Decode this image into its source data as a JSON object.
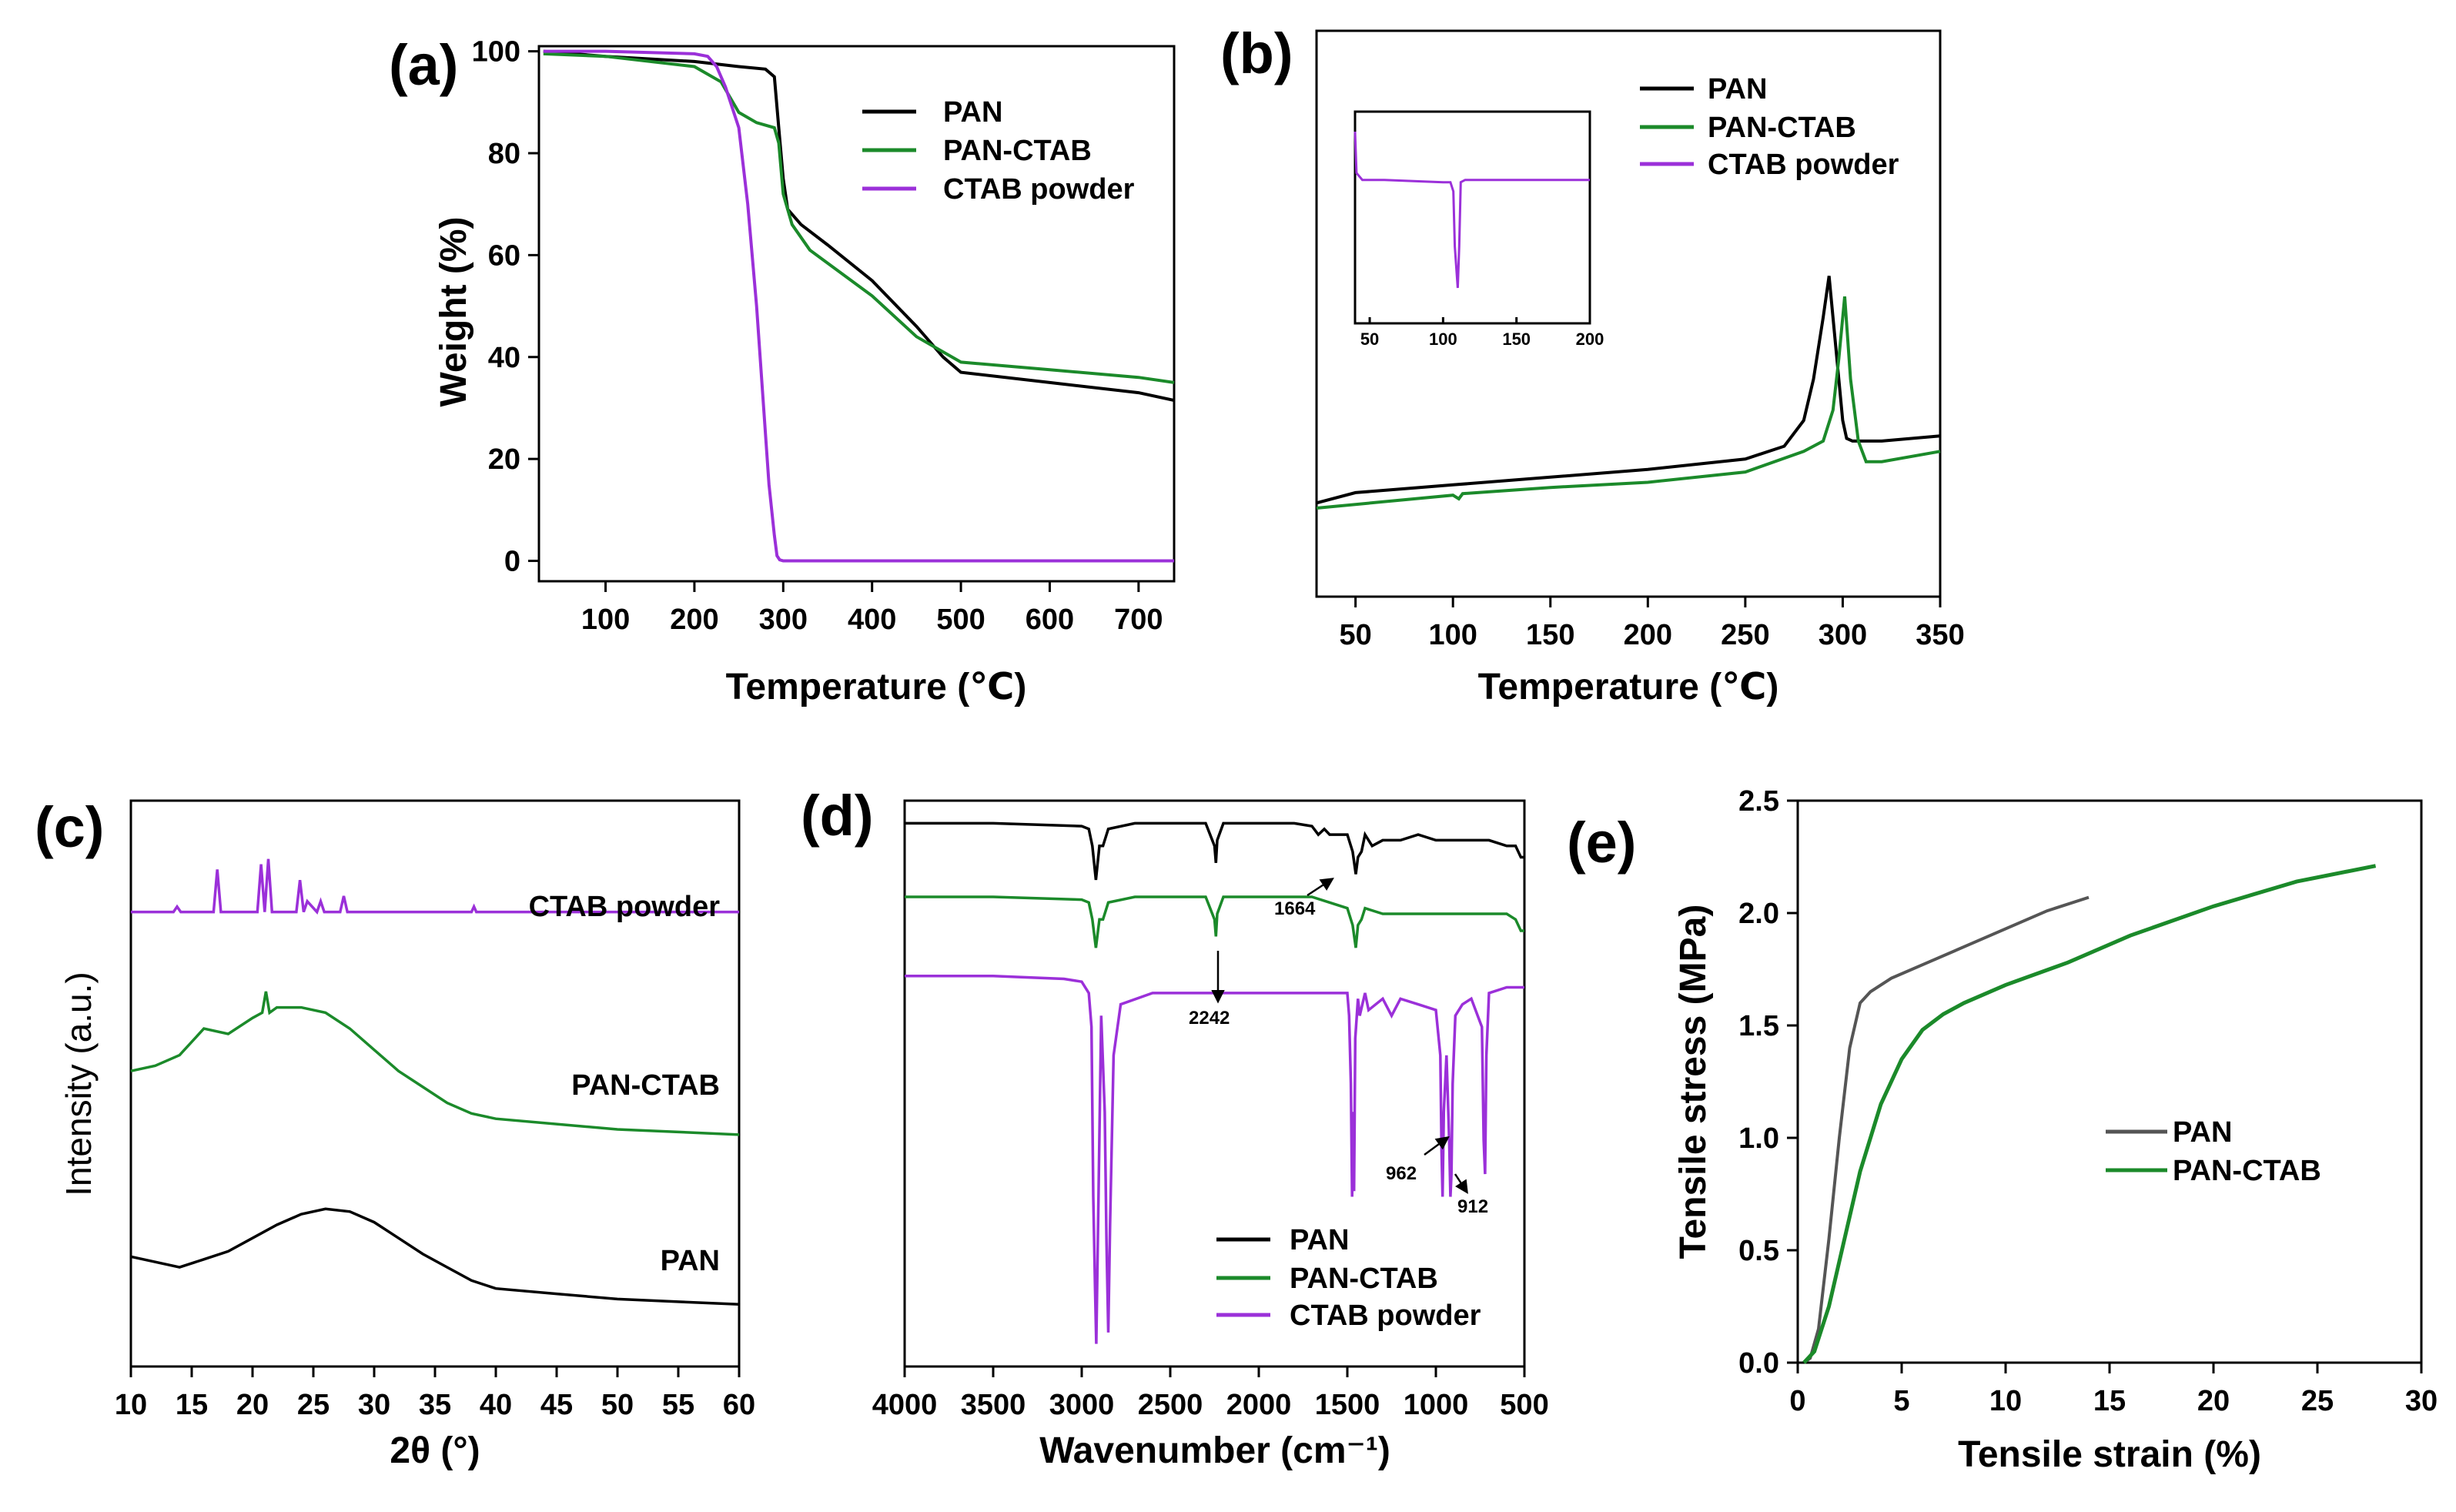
{
  "colors": {
    "pan": "#000000",
    "pan_ctab": "#1b8a2a",
    "ctab": "#9b30d9",
    "pan_gray": "#555555"
  },
  "chart_data": [
    {
      "id": "a",
      "type": "line",
      "panel_label": "(a)",
      "xlabel": "Temperature (℃)",
      "ylabel": "Weight (%)",
      "xlim": [
        25,
        740
      ],
      "ylim": [
        -4,
        101
      ],
      "xticks": [
        100,
        200,
        300,
        400,
        500,
        600,
        700
      ],
      "yticks": [
        0,
        20,
        40,
        60,
        80,
        100
      ],
      "legend_position": "top-right",
      "series": [
        {
          "name": "PAN",
          "color_key": "pan",
          "x": [
            30,
            100,
            200,
            250,
            280,
            290,
            295,
            300,
            305,
            320,
            350,
            400,
            450,
            480,
            500,
            600,
            700,
            740
          ],
          "y": [
            100,
            99,
            98,
            97,
            96.5,
            95,
            85,
            75,
            69,
            66,
            62,
            55,
            46,
            40,
            37,
            35,
            33,
            31.5
          ]
        },
        {
          "name": "PAN-CTAB",
          "color_key": "pan_ctab",
          "x": [
            30,
            100,
            200,
            230,
            250,
            270,
            290,
            295,
            300,
            310,
            330,
            400,
            450,
            500,
            600,
            700,
            740
          ],
          "y": [
            99.5,
            99,
            97,
            94,
            88,
            86,
            85,
            82,
            72,
            66,
            61,
            52,
            44,
            39,
            37.5,
            36,
            35
          ]
        },
        {
          "name": "CTAB powder",
          "color_key": "ctab",
          "x": [
            30,
            100,
            200,
            215,
            225,
            235,
            250,
            260,
            270,
            278,
            284,
            290,
            293,
            296,
            300,
            400,
            500,
            600,
            700,
            740
          ],
          "y": [
            100,
            100,
            99.5,
            99,
            97,
            93,
            85,
            70,
            50,
            30,
            15,
            5,
            1,
            0.2,
            0,
            0,
            0,
            0,
            0,
            0
          ]
        }
      ]
    },
    {
      "id": "b",
      "type": "line",
      "panel_label": "(b)",
      "xlabel": "Temperature (℃)",
      "ylabel": "",
      "xlim": [
        30,
        350
      ],
      "ylim": [
        0,
        100
      ],
      "xticks": [
        50,
        100,
        150,
        200,
        250,
        300,
        350
      ],
      "legend_position": "top-right",
      "series": [
        {
          "name": "PAN",
          "color_key": "pan",
          "x": [
            30,
            50,
            100,
            150,
            200,
            250,
            270,
            280,
            285,
            290,
            293,
            296,
            300,
            302,
            305,
            320,
            350
          ],
          "y": [
            16,
            18,
            19.5,
            21,
            22.5,
            24.5,
            27,
            32,
            40,
            52,
            60,
            48,
            32,
            28.5,
            28,
            28,
            29
          ]
        },
        {
          "name": "PAN-CTAB",
          "color_key": "pan_ctab",
          "x": [
            30,
            100,
            103,
            105,
            150,
            200,
            250,
            280,
            290,
            295,
            298,
            301,
            304,
            308,
            312,
            320,
            350
          ],
          "y": [
            15,
            17.5,
            16.8,
            17.8,
            19,
            20,
            22,
            26,
            28,
            34,
            44,
            56,
            40,
            28,
            24,
            24,
            26
          ]
        }
      ],
      "inset": {
        "xlim": [
          40,
          200
        ],
        "ylim": [
          0,
          100
        ],
        "xticks": [
          50,
          100,
          150,
          200
        ],
        "series": [
          {
            "name": "CTAB powder",
            "color_key": "ctab",
            "x": [
              40,
              41,
              45,
              60,
              80,
              100,
              105,
              107,
              108,
              110,
              111,
              112,
              115,
              130,
              160,
              200
            ],
            "y": [
              90,
              72,
              69,
              69,
              68.5,
              68,
              68,
              64,
              40,
              22,
              40,
              68,
              69,
              69,
              69,
              69
            ]
          }
        ]
      }
    },
    {
      "id": "c",
      "type": "line",
      "panel_label": "(c)",
      "xlabel": "2θ (°)",
      "ylabel": "Intensity (a.u.)",
      "xlim": [
        10,
        60
      ],
      "ylim": [
        0,
        100
      ],
      "xticks": [
        10,
        15,
        20,
        25,
        30,
        35,
        40,
        45,
        50,
        55,
        60
      ],
      "series": [
        {
          "name": "CTAB powder",
          "color_key": "ctab",
          "x": [
            10,
            13.5,
            13.8,
            14.1,
            16.8,
            17.1,
            17.4,
            20.4,
            20.7,
            21.0,
            21.3,
            21.6,
            21.9,
            23.6,
            23.9,
            24.2,
            24.5,
            25.3,
            25.6,
            25.9,
            27.2,
            27.5,
            27.8,
            30,
            35,
            38,
            38.2,
            38.4,
            45,
            50,
            55,
            60
          ],
          "y": [
            87,
            87,
            88,
            87,
            87,
            95,
            87,
            87,
            96,
            87,
            97,
            87,
            87,
            87,
            93,
            87,
            89,
            87,
            89,
            87,
            87,
            90,
            87,
            87,
            87,
            87,
            88,
            87,
            87,
            87,
            87,
            87
          ]
        },
        {
          "name": "PAN-CTAB",
          "color_key": "pan_ctab",
          "x": [
            10,
            12,
            14,
            16,
            18,
            20,
            20.8,
            21.1,
            21.4,
            22,
            24,
            26,
            28,
            30,
            32,
            34,
            36,
            38,
            40,
            45,
            50,
            55,
            60
          ],
          "y": [
            57,
            58,
            60,
            65,
            64,
            67,
            68,
            72,
            68,
            69,
            69,
            68,
            65,
            61,
            57,
            54,
            51,
            49,
            48,
            47,
            46,
            45.5,
            45
          ]
        },
        {
          "name": "PAN",
          "color_key": "pan",
          "x": [
            10,
            12,
            14,
            16,
            18,
            20,
            22,
            24,
            26,
            28,
            30,
            32,
            34,
            36,
            38,
            40,
            45,
            50,
            55,
            60
          ],
          "y": [
            22,
            21,
            20,
            21.5,
            23,
            25.5,
            28,
            30,
            31,
            30.5,
            28.5,
            25.5,
            22.5,
            20,
            17.5,
            16,
            15,
            14,
            13.5,
            13
          ]
        }
      ],
      "series_labels": [
        "CTAB powder",
        "PAN-CTAB",
        "PAN"
      ]
    },
    {
      "id": "d",
      "type": "line",
      "panel_label": "(d)",
      "xlabel": "Wavenumber (cm⁻¹)",
      "ylabel": "",
      "xlim": [
        4000,
        500
      ],
      "ylim": [
        0,
        100
      ],
      "xticks": [
        4000,
        3500,
        3000,
        2500,
        2000,
        1500,
        1000,
        500
      ],
      "legend_position": "bottom-right",
      "series": [
        {
          "name": "PAN",
          "color_key": "pan",
          "x": [
            4000,
            3500,
            3000,
            2960,
            2940,
            2920,
            2900,
            2880,
            2860,
            2850,
            2700,
            2300,
            2250,
            2242,
            2235,
            2200,
            1800,
            1700,
            1664,
            1630,
            1600,
            1500,
            1470,
            1452,
            1440,
            1420,
            1400,
            1360,
            1300,
            1200,
            1100,
            1000,
            900,
            800,
            700,
            600,
            550,
            520,
            500
          ],
          "y": [
            96,
            96,
            95.5,
            95,
            92,
            86,
            92,
            92,
            94,
            95,
            96,
            96,
            92,
            89,
            93,
            96,
            96,
            95.5,
            94,
            95,
            94,
            94,
            91,
            87,
            90,
            91,
            94,
            92,
            93,
            93,
            94,
            93,
            93,
            93,
            93,
            92,
            92,
            90,
            90
          ]
        },
        {
          "name": "PAN-CTAB",
          "color_key": "pan_ctab",
          "x": [
            4000,
            3500,
            3000,
            2960,
            2940,
            2920,
            2900,
            2880,
            2860,
            2850,
            2700,
            2300,
            2250,
            2242,
            2235,
            2200,
            1800,
            1700,
            1600,
            1500,
            1470,
            1452,
            1440,
            1420,
            1400,
            1300,
            1200,
            1100,
            1000,
            900,
            800,
            700,
            600,
            550,
            520,
            500
          ],
          "y": [
            83,
            83,
            82.5,
            82,
            79,
            74,
            79,
            79,
            81,
            82,
            83,
            83,
            79,
            76,
            80,
            83,
            83,
            83,
            82,
            81,
            78,
            74,
            78,
            79,
            81,
            80,
            80,
            80,
            80,
            80,
            80,
            80,
            80,
            79,
            77,
            77
          ]
        },
        {
          "name": "CTAB powder",
          "color_key": "ctab",
          "x": [
            4000,
            3500,
            3100,
            3000,
            2960,
            2945,
            2935,
            2925,
            2918,
            2905,
            2890,
            2870,
            2860,
            2850,
            2840,
            2820,
            2780,
            2600,
            2000,
            1600,
            1500,
            1490,
            1480,
            1473,
            1466,
            1462,
            1455,
            1440,
            1430,
            1400,
            1380,
            1300,
            1250,
            1200,
            1100,
            1000,
            975,
            968,
            962,
            955,
            940,
            925,
            918,
            912,
            905,
            890,
            850,
            800,
            740,
            730,
            722,
            715,
            700,
            600,
            500
          ],
          "y": [
            69,
            69,
            68.5,
            68,
            66,
            60,
            30,
            14,
            4,
            30,
            62,
            45,
            22,
            6,
            25,
            55,
            64,
            66,
            66,
            66,
            66,
            62,
            50,
            30,
            45,
            31,
            58,
            65,
            62,
            66,
            63,
            65,
            62,
            65,
            64,
            63,
            55,
            38,
            30,
            45,
            55,
            40,
            30,
            34,
            50,
            62,
            64,
            65,
            60,
            40,
            34,
            55,
            66,
            67,
            67
          ]
        }
      ],
      "annotations": [
        "1664",
        "2242",
        "962",
        "912"
      ]
    },
    {
      "id": "e",
      "type": "line",
      "panel_label": "(e)",
      "xlabel": "Tensile strain (%)",
      "ylabel": "Tensile stress (MPa)",
      "xlim": [
        0,
        30
      ],
      "ylim": [
        0,
        2.5
      ],
      "xticks": [
        0,
        5,
        10,
        15,
        20,
        25,
        30
      ],
      "yticks": [
        0.0,
        0.5,
        1.0,
        1.5,
        2.0,
        2.5
      ],
      "legend_position": "center-right",
      "series": [
        {
          "name": "PAN",
          "color_key": "pan_gray",
          "x": [
            0.3,
            0.6,
            1.0,
            1.5,
            2.0,
            2.5,
            3.0,
            3.5,
            4.5,
            6,
            8,
            10,
            12,
            14
          ],
          "y": [
            0,
            0.02,
            0.15,
            0.55,
            1.0,
            1.4,
            1.6,
            1.65,
            1.71,
            1.77,
            1.85,
            1.93,
            2.01,
            2.07
          ]
        },
        {
          "name": "PAN-CTAB",
          "color_key": "pan_ctab",
          "x": [
            0.3,
            0.8,
            1.5,
            2.0,
            3.0,
            4.0,
            5.0,
            6.0,
            7.0,
            8,
            10,
            13,
            16,
            20,
            24,
            27.8
          ],
          "y": [
            0,
            0.05,
            0.25,
            0.45,
            0.85,
            1.15,
            1.35,
            1.48,
            1.55,
            1.6,
            1.68,
            1.78,
            1.9,
            2.03,
            2.14,
            2.21
          ]
        }
      ]
    }
  ]
}
